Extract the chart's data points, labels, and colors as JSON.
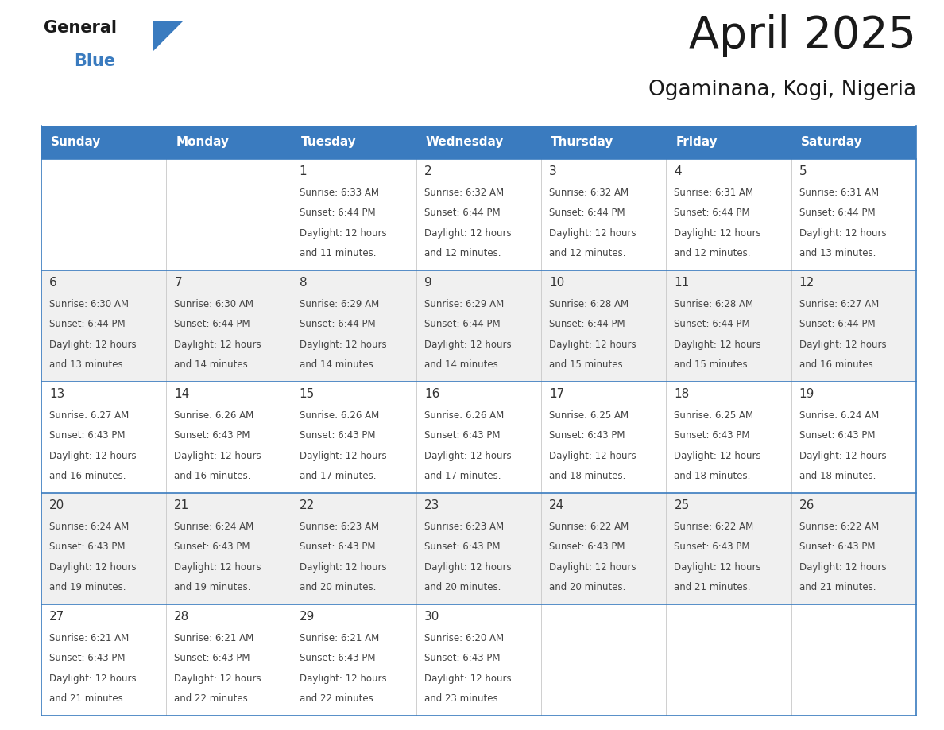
{
  "title": "April 2025",
  "subtitle": "Ogaminana, Kogi, Nigeria",
  "header_bg": "#3a7bbf",
  "header_text": "#ffffff",
  "row_bg_1": "#ffffff",
  "row_bg_2": "#f0f0f0",
  "border_color": "#3a7bbf",
  "days_of_week": [
    "Sunday",
    "Monday",
    "Tuesday",
    "Wednesday",
    "Thursday",
    "Friday",
    "Saturday"
  ],
  "cell_text_color": "#444444",
  "day_num_color": "#333333",
  "title_color": "#1a1a1a",
  "subtitle_color": "#1a1a1a",
  "logo_text_color": "#1a1a1a",
  "logo_blue_color": "#3a7bbf",
  "calendar": [
    [
      {
        "day": "",
        "sunrise": "",
        "sunset": "",
        "daylight": ""
      },
      {
        "day": "",
        "sunrise": "",
        "sunset": "",
        "daylight": ""
      },
      {
        "day": "1",
        "sunrise": "6:33 AM",
        "sunset": "6:44 PM",
        "daylight": "and 11 minutes."
      },
      {
        "day": "2",
        "sunrise": "6:32 AM",
        "sunset": "6:44 PM",
        "daylight": "and 12 minutes."
      },
      {
        "day": "3",
        "sunrise": "6:32 AM",
        "sunset": "6:44 PM",
        "daylight": "and 12 minutes."
      },
      {
        "day": "4",
        "sunrise": "6:31 AM",
        "sunset": "6:44 PM",
        "daylight": "and 12 minutes."
      },
      {
        "day": "5",
        "sunrise": "6:31 AM",
        "sunset": "6:44 PM",
        "daylight": "and 13 minutes."
      }
    ],
    [
      {
        "day": "6",
        "sunrise": "6:30 AM",
        "sunset": "6:44 PM",
        "daylight": "and 13 minutes."
      },
      {
        "day": "7",
        "sunrise": "6:30 AM",
        "sunset": "6:44 PM",
        "daylight": "and 14 minutes."
      },
      {
        "day": "8",
        "sunrise": "6:29 AM",
        "sunset": "6:44 PM",
        "daylight": "and 14 minutes."
      },
      {
        "day": "9",
        "sunrise": "6:29 AM",
        "sunset": "6:44 PM",
        "daylight": "and 14 minutes."
      },
      {
        "day": "10",
        "sunrise": "6:28 AM",
        "sunset": "6:44 PM",
        "daylight": "and 15 minutes."
      },
      {
        "day": "11",
        "sunrise": "6:28 AM",
        "sunset": "6:44 PM",
        "daylight": "and 15 minutes."
      },
      {
        "day": "12",
        "sunrise": "6:27 AM",
        "sunset": "6:44 PM",
        "daylight": "and 16 minutes."
      }
    ],
    [
      {
        "day": "13",
        "sunrise": "6:27 AM",
        "sunset": "6:43 PM",
        "daylight": "and 16 minutes."
      },
      {
        "day": "14",
        "sunrise": "6:26 AM",
        "sunset": "6:43 PM",
        "daylight": "and 16 minutes."
      },
      {
        "day": "15",
        "sunrise": "6:26 AM",
        "sunset": "6:43 PM",
        "daylight": "and 17 minutes."
      },
      {
        "day": "16",
        "sunrise": "6:26 AM",
        "sunset": "6:43 PM",
        "daylight": "and 17 minutes."
      },
      {
        "day": "17",
        "sunrise": "6:25 AM",
        "sunset": "6:43 PM",
        "daylight": "and 18 minutes."
      },
      {
        "day": "18",
        "sunrise": "6:25 AM",
        "sunset": "6:43 PM",
        "daylight": "and 18 minutes."
      },
      {
        "day": "19",
        "sunrise": "6:24 AM",
        "sunset": "6:43 PM",
        "daylight": "and 18 minutes."
      }
    ],
    [
      {
        "day": "20",
        "sunrise": "6:24 AM",
        "sunset": "6:43 PM",
        "daylight": "and 19 minutes."
      },
      {
        "day": "21",
        "sunrise": "6:24 AM",
        "sunset": "6:43 PM",
        "daylight": "and 19 minutes."
      },
      {
        "day": "22",
        "sunrise": "6:23 AM",
        "sunset": "6:43 PM",
        "daylight": "and 20 minutes."
      },
      {
        "day": "23",
        "sunrise": "6:23 AM",
        "sunset": "6:43 PM",
        "daylight": "and 20 minutes."
      },
      {
        "day": "24",
        "sunrise": "6:22 AM",
        "sunset": "6:43 PM",
        "daylight": "and 20 minutes."
      },
      {
        "day": "25",
        "sunrise": "6:22 AM",
        "sunset": "6:43 PM",
        "daylight": "and 21 minutes."
      },
      {
        "day": "26",
        "sunrise": "6:22 AM",
        "sunset": "6:43 PM",
        "daylight": "and 21 minutes."
      }
    ],
    [
      {
        "day": "27",
        "sunrise": "6:21 AM",
        "sunset": "6:43 PM",
        "daylight": "and 21 minutes."
      },
      {
        "day": "28",
        "sunrise": "6:21 AM",
        "sunset": "6:43 PM",
        "daylight": "and 22 minutes."
      },
      {
        "day": "29",
        "sunrise": "6:21 AM",
        "sunset": "6:43 PM",
        "daylight": "and 22 minutes."
      },
      {
        "day": "30",
        "sunrise": "6:20 AM",
        "sunset": "6:43 PM",
        "daylight": "and 23 minutes."
      },
      {
        "day": "",
        "sunrise": "",
        "sunset": "",
        "daylight": ""
      },
      {
        "day": "",
        "sunrise": "",
        "sunset": "",
        "daylight": ""
      },
      {
        "day": "",
        "sunrise": "",
        "sunset": "",
        "daylight": ""
      }
    ]
  ]
}
